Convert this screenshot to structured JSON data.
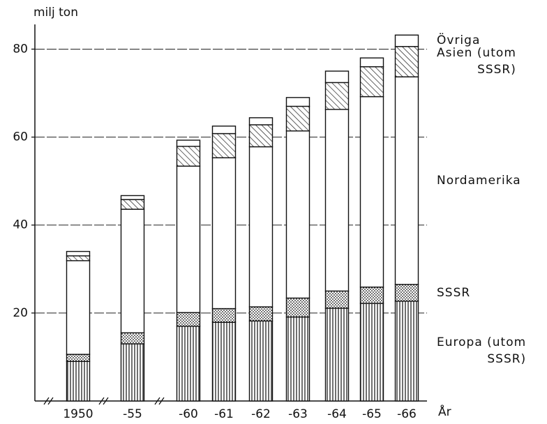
{
  "chart_data": {
    "type": "stacked-bar",
    "y_axis_label": "milj ton",
    "x_axis_label": "År",
    "categories": [
      "1950",
      "-55",
      "-60",
      "-61",
      "-62",
      "-63",
      "-64",
      "-65",
      "-66"
    ],
    "series": [
      {
        "name": "Europa (utom\nSSSR)",
        "color": "#111111",
        "pattern": "vertical-lines",
        "values": [
          9.0,
          13.0,
          17.0,
          17.9,
          18.2,
          19.1,
          21.1,
          22.2,
          22.7
        ]
      },
      {
        "name": "SSSR",
        "color": "#111111",
        "pattern": "dots",
        "values": [
          1.6,
          2.5,
          3.1,
          3.1,
          3.2,
          4.3,
          3.9,
          3.7,
          3.8
        ]
      },
      {
        "name": "Nordamerika",
        "color": "#111111",
        "pattern": "none",
        "values": [
          21.3,
          28.1,
          33.3,
          34.3,
          36.4,
          38.0,
          41.3,
          43.3,
          47.2
        ]
      },
      {
        "name": "Asien (utom\nSSSR)",
        "color": "#111111",
        "pattern": "diagonal-lines",
        "values": [
          1.1,
          2.2,
          4.5,
          5.5,
          5.0,
          5.6,
          6.1,
          6.8,
          6.9
        ]
      },
      {
        "name": "Övriga",
        "color": "#111111",
        "pattern": "none",
        "values": [
          1.0,
          0.9,
          1.4,
          1.7,
          1.6,
          2.0,
          2.6,
          2.0,
          2.6
        ]
      }
    ],
    "ylim": [
      0,
      88
    ],
    "yticks": [
      20,
      40,
      60,
      80
    ],
    "grid": true
  }
}
